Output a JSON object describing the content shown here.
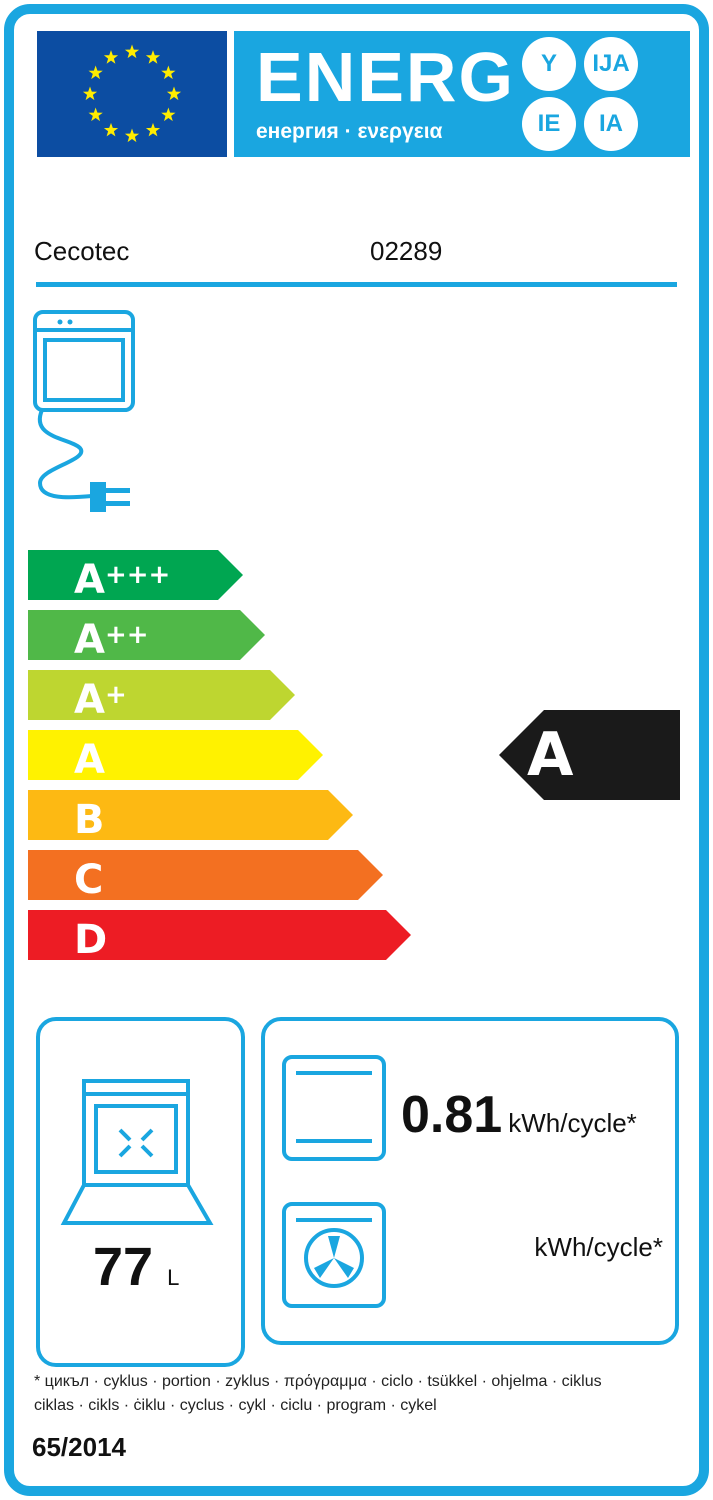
{
  "header": {
    "title": "ENERG",
    "subtitle": "енергия · ενεργεια",
    "suffixes": [
      "Y",
      "IJA",
      "IE",
      "IA"
    ],
    "flag": "eu-flag"
  },
  "supplier": "Cecotec",
  "model": "02289",
  "classes": [
    {
      "label": "A",
      "plus": "+++",
      "color": "#00a651"
    },
    {
      "label": "A",
      "plus": "++",
      "color": "#50b848"
    },
    {
      "label": "A",
      "plus": "+",
      "color": "#bed630"
    },
    {
      "label": "A",
      "plus": "",
      "color": "#fff200"
    },
    {
      "label": "B",
      "plus": "",
      "color": "#fdb913"
    },
    {
      "label": "C",
      "plus": "",
      "color": "#f37021"
    },
    {
      "label": "D",
      "plus": "",
      "color": "#ed1c24"
    }
  ],
  "rating": "A",
  "volume": {
    "value": "77",
    "unit": "L"
  },
  "conventional": {
    "value": "0.81",
    "unit": "kWh/cycle*"
  },
  "fan": {
    "value": "",
    "unit": "kWh/cycle*"
  },
  "footnote": [
    "* цикъл · cyklus · portion · zyklus · πρόγραμμα · ciclo · tsükkel · ohjelma · ciklus",
    "ciklas · cikls · ċiklu · cyclus · cykl · ciclu · program · cykel"
  ],
  "regulation": "65/2014",
  "colors": {
    "accent": "#1aa6e0",
    "flag": "#0c4da2"
  }
}
